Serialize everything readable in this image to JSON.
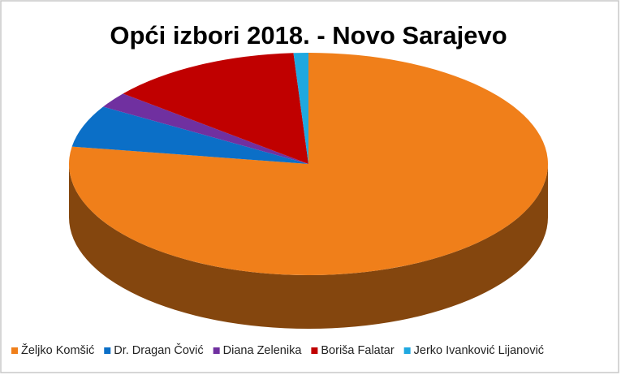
{
  "chart_data": {
    "type": "pie",
    "title": "Opći izbori 2018. - Novo Sarajevo",
    "categories": [
      "Željko Komšić",
      "Dr. Dragan Čović",
      "Diana Zelenika",
      "Boriša Falatar",
      "Jerko Ivanković Lijanović"
    ],
    "values": [
      77.5,
      6.1,
      2.3,
      13.1,
      1.0
    ],
    "colors": [
      "#f07f1a",
      "#0b6fc7",
      "#7030a0",
      "#c00000",
      "#1fa8e0"
    ],
    "legend": "bottom"
  }
}
